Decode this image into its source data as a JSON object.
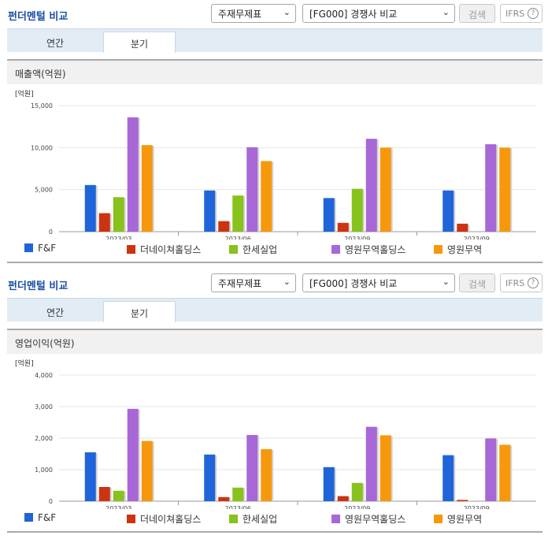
{
  "colors": {
    "FF": "#1f64d8",
    "더네이쳐홀딩스": "#cc3311",
    "한세실업": "#88c21c",
    "영원무역홀딩스": "#a867d6",
    "영원무역": "#f7980c"
  },
  "panels": [
    {
      "title": "펀더멘털 비교",
      "select1": "주재무제표",
      "select2": "[FG000] 경쟁사 비교",
      "search_label": "검색",
      "ifrs_label": "IFRS",
      "ifrs_help": "?",
      "tabs": {
        "annual": "연간",
        "quarter": "분기"
      },
      "section_title": "매출액(억원)",
      "legend": [
        "F&F",
        "더네이쳐홀딩스",
        "한세실업",
        "영원무역홀딩스",
        "영원무역"
      ]
    },
    {
      "title": "펀더멘털 비교",
      "select1": "주재무제표",
      "select2": "[FG000] 경쟁사 비교",
      "search_label": "검색",
      "ifrs_label": "IFRS",
      "ifrs_help": "?",
      "tabs": {
        "annual": "연간",
        "quarter": "분기"
      },
      "section_title": "영업이익(억원)",
      "legend": [
        "F&F",
        "더네이쳐홀딩스",
        "한세실업",
        "영원무역홀딩스",
        "영원무역"
      ]
    }
  ],
  "chart_data": [
    {
      "type": "bar",
      "title": "매출액(억원)",
      "unit_label": "[억원]",
      "categories": [
        "2023/03",
        "2023/06",
        "2023/09",
        "2023/09"
      ],
      "ylim": [
        0,
        15000
      ],
      "yticks": [
        0,
        5000,
        10000,
        15000
      ],
      "ytick_labels": [
        "0",
        "5,000",
        "10,000",
        "15,000"
      ],
      "grid": true,
      "legend_position": "bottom",
      "series": [
        {
          "name": "F&F",
          "color": "#1f64d8",
          "values": [
            5550,
            4900,
            4000,
            4900
          ]
        },
        {
          "name": "더네이쳐홀딩스",
          "color": "#cc3311",
          "values": [
            2200,
            1250,
            1050,
            950
          ]
        },
        {
          "name": "한세실업",
          "color": "#88c21c",
          "values": [
            4100,
            4300,
            5100,
            null
          ]
        },
        {
          "name": "영원무역홀딩스",
          "color": "#a867d6",
          "values": [
            13600,
            10050,
            11050,
            10400
          ]
        },
        {
          "name": "영원무역",
          "color": "#f7980c",
          "values": [
            10300,
            8400,
            10000,
            10000
          ]
        }
      ]
    },
    {
      "type": "bar",
      "title": "영업이익(억원)",
      "unit_label": "[억원]",
      "categories": [
        "2023/03",
        "2023/06",
        "2023/09",
        "2023/09"
      ],
      "ylim": [
        0,
        4000
      ],
      "yticks": [
        0,
        1000,
        2000,
        3000,
        4000
      ],
      "ytick_labels": [
        "0",
        "1,000",
        "2,000",
        "3,000",
        "4,000"
      ],
      "grid": true,
      "legend_position": "bottom",
      "series": [
        {
          "name": "F&F",
          "color": "#1f64d8",
          "values": [
            1550,
            1480,
            1080,
            1460
          ]
        },
        {
          "name": "더네이쳐홀딩스",
          "color": "#cc3311",
          "values": [
            450,
            130,
            160,
            40
          ]
        },
        {
          "name": "한세실업",
          "color": "#88c21c",
          "values": [
            330,
            430,
            580,
            null
          ]
        },
        {
          "name": "영원무역홀딩스",
          "color": "#a867d6",
          "values": [
            2930,
            2100,
            2360,
            1990
          ]
        },
        {
          "name": "영원무역",
          "color": "#f7980c",
          "values": [
            1910,
            1650,
            2090,
            1790
          ]
        }
      ]
    }
  ]
}
